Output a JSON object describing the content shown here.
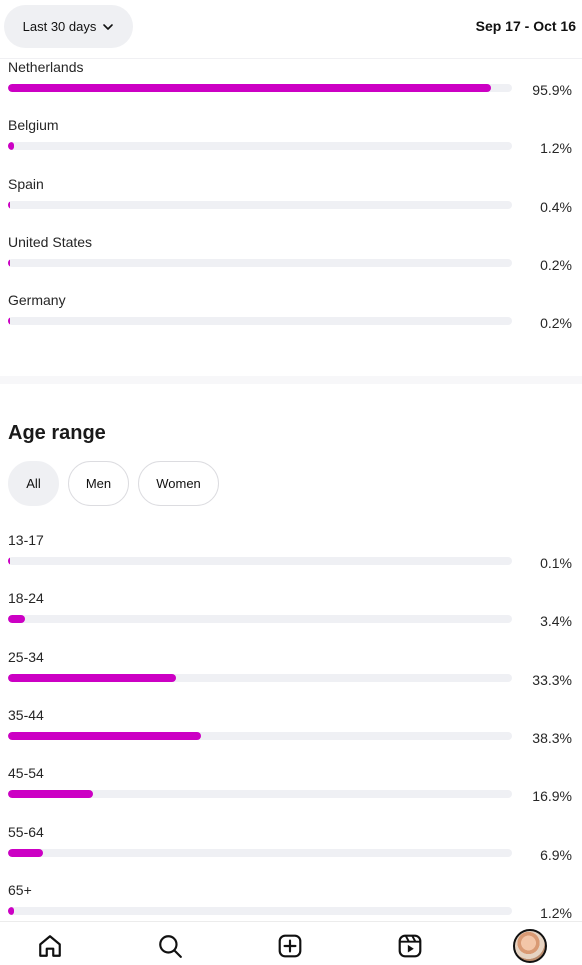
{
  "header": {
    "range_label": "Last 30 days",
    "date_range": "Sep 17 - Oct 16"
  },
  "locations": [
    {
      "label": "Netherlands",
      "percent_text": "95.9%",
      "value": 95.9
    },
    {
      "label": "Belgium",
      "percent_text": "1.2%",
      "value": 1.2
    },
    {
      "label": "Spain",
      "percent_text": "0.4%",
      "value": 0.4
    },
    {
      "label": "United States",
      "percent_text": "0.2%",
      "value": 0.2
    },
    {
      "label": "Germany",
      "percent_text": "0.2%",
      "value": 0.2
    }
  ],
  "age": {
    "title": "Age range",
    "filters": [
      "All",
      "Men",
      "Women"
    ],
    "selected_filter": "All",
    "rows": [
      {
        "label": "13-17",
        "percent_text": "0.1%",
        "value": 0.1
      },
      {
        "label": "18-24",
        "percent_text": "3.4%",
        "value": 3.4
      },
      {
        "label": "25-34",
        "percent_text": "33.3%",
        "value": 33.3
      },
      {
        "label": "35-44",
        "percent_text": "38.3%",
        "value": 38.3
      },
      {
        "label": "45-54",
        "percent_text": "16.9%",
        "value": 16.9
      },
      {
        "label": "55-64",
        "percent_text": "6.9%",
        "value": 6.9
      },
      {
        "label": "65+",
        "percent_text": "1.2%",
        "value": 1.2
      }
    ]
  },
  "nav": {
    "items": [
      "home-icon",
      "search-icon",
      "create-icon",
      "reels-icon",
      "profile-avatar"
    ]
  },
  "colors": {
    "accent": "#cc00c4",
    "track": "#eff0f4",
    "pill": "#eff0f3"
  }
}
